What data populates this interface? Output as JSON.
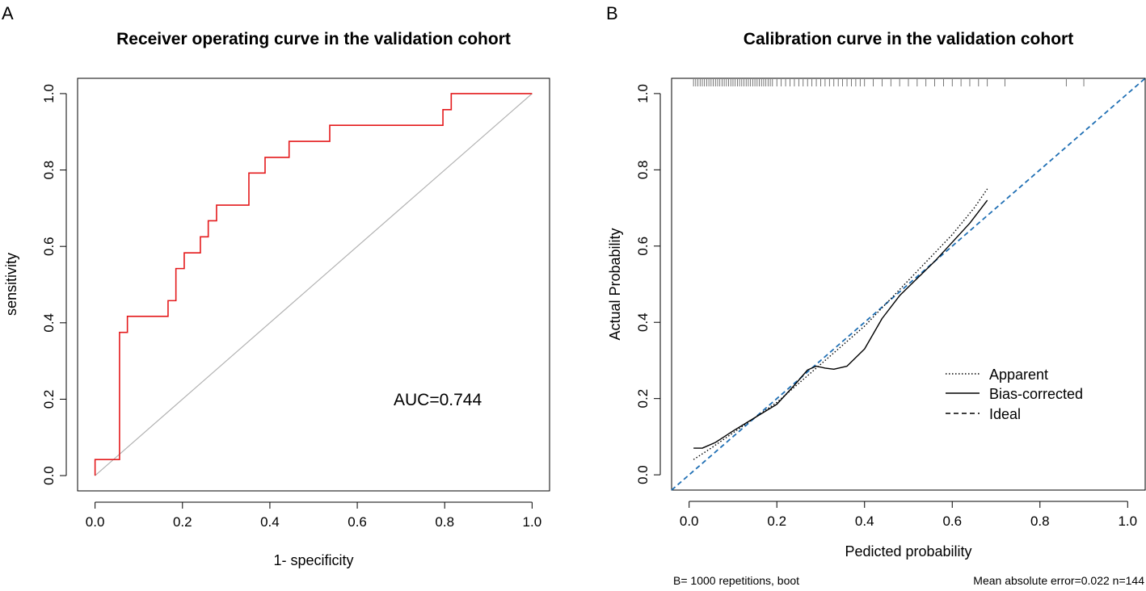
{
  "panels": [
    {
      "letter": "A",
      "chart_data": {
        "type": "line",
        "title": "Receiver operating curve in the validation cohort",
        "xlabel": "1- specificity",
        "ylabel": "sensitivity",
        "xlim": [
          -0.04,
          1.04
        ],
        "ylim": [
          -0.04,
          1.04
        ],
        "x_ticks": [
          "0.0",
          "0.2",
          "0.4",
          "0.6",
          "0.8",
          "1.0"
        ],
        "y_ticks": [
          "0.0",
          "0.2",
          "0.4",
          "0.6",
          "0.8",
          "1.0"
        ],
        "annotation": "AUC=0.744",
        "series": [
          {
            "name": "ROC",
            "color": "#e41a1c",
            "step": true,
            "x": [
              0,
              0.056,
              0.056,
              0.074,
              0.074,
              0.167,
              0.167,
              0.185,
              0.185,
              0.204,
              0.204,
              0.241,
              0.241,
              0.259,
              0.259,
              0.278,
              0.278,
              0.352,
              0.352,
              0.389,
              0.389,
              0.444,
              0.444,
              0.537,
              0.537,
              0.796,
              0.796,
              0.815,
              0.815,
              1.0
            ],
            "y": [
              0.042,
              0.042,
              0.375,
              0.375,
              0.417,
              0.417,
              0.458,
              0.458,
              0.542,
              0.542,
              0.583,
              0.583,
              0.625,
              0.625,
              0.667,
              0.667,
              0.708,
              0.708,
              0.792,
              0.792,
              0.833,
              0.833,
              0.875,
              0.875,
              0.917,
              0.917,
              0.958,
              0.958,
              1.0,
              1.0
            ]
          },
          {
            "name": "Reference",
            "color": "#b0b0b0",
            "x": [
              0,
              1
            ],
            "y": [
              0,
              1
            ]
          }
        ]
      }
    },
    {
      "letter": "B",
      "chart_data": {
        "type": "line",
        "title": "Calibration curve in the validation cohort",
        "xlabel": "Pedicted probability",
        "ylabel": "Actual Probability",
        "xlim": [
          -0.04,
          1.04
        ],
        "ylim": [
          -0.04,
          1.04
        ],
        "x_ticks": [
          "0.0",
          "0.2",
          "0.4",
          "0.6",
          "0.8",
          "1.0"
        ],
        "y_ticks": [
          "0.0",
          "0.2",
          "0.4",
          "0.6",
          "0.8",
          "1.0"
        ],
        "legend": [
          "Apparent",
          "Bias-corrected",
          "Ideal"
        ],
        "legend_position": "bottom-right",
        "series": [
          {
            "name": "Apparent",
            "dash": "dotted",
            "color": "#000000",
            "x": [
              0.01,
              0.05,
              0.1,
              0.15,
              0.2,
              0.25,
              0.3,
              0.35,
              0.4,
              0.45,
              0.5,
              0.55,
              0.6,
              0.65,
              0.68
            ],
            "y": [
              0.04,
              0.07,
              0.11,
              0.15,
              0.19,
              0.24,
              0.29,
              0.34,
              0.39,
              0.45,
              0.51,
              0.57,
              0.63,
              0.7,
              0.75
            ]
          },
          {
            "name": "Bias-corrected",
            "dash": "solid",
            "color": "#000000",
            "x": [
              0.01,
              0.03,
              0.06,
              0.1,
              0.15,
              0.2,
              0.24,
              0.27,
              0.29,
              0.31,
              0.33,
              0.36,
              0.4,
              0.44,
              0.48,
              0.52,
              0.56,
              0.6,
              0.64,
              0.68
            ],
            "y": [
              0.07,
              0.07,
              0.085,
              0.115,
              0.15,
              0.185,
              0.235,
              0.275,
              0.285,
              0.28,
              0.277,
              0.285,
              0.33,
              0.41,
              0.47,
              0.515,
              0.56,
              0.61,
              0.66,
              0.72
            ]
          },
          {
            "name": "Ideal",
            "dash": "dashed",
            "color": "#1f6fb4",
            "x": [
              -0.04,
              1.04
            ],
            "y": [
              -0.04,
              1.04
            ]
          }
        ],
        "rug_x": [
          0.01,
          0.015,
          0.02,
          0.025,
          0.03,
          0.035,
          0.04,
          0.045,
          0.05,
          0.055,
          0.06,
          0.065,
          0.07,
          0.075,
          0.08,
          0.085,
          0.09,
          0.095,
          0.1,
          0.105,
          0.11,
          0.115,
          0.12,
          0.125,
          0.13,
          0.135,
          0.14,
          0.145,
          0.15,
          0.155,
          0.16,
          0.165,
          0.17,
          0.175,
          0.18,
          0.185,
          0.19,
          0.2,
          0.21,
          0.22,
          0.23,
          0.24,
          0.25,
          0.26,
          0.27,
          0.28,
          0.29,
          0.3,
          0.31,
          0.32,
          0.33,
          0.34,
          0.35,
          0.36,
          0.37,
          0.38,
          0.39,
          0.4,
          0.42,
          0.44,
          0.46,
          0.48,
          0.5,
          0.52,
          0.54,
          0.56,
          0.58,
          0.6,
          0.62,
          0.64,
          0.66,
          0.68,
          0.72,
          0.86,
          0.9
        ],
        "footer_left": "B= 1000 repetitions, boot",
        "footer_right": "Mean absolute error=0.022 n=144"
      }
    }
  ]
}
